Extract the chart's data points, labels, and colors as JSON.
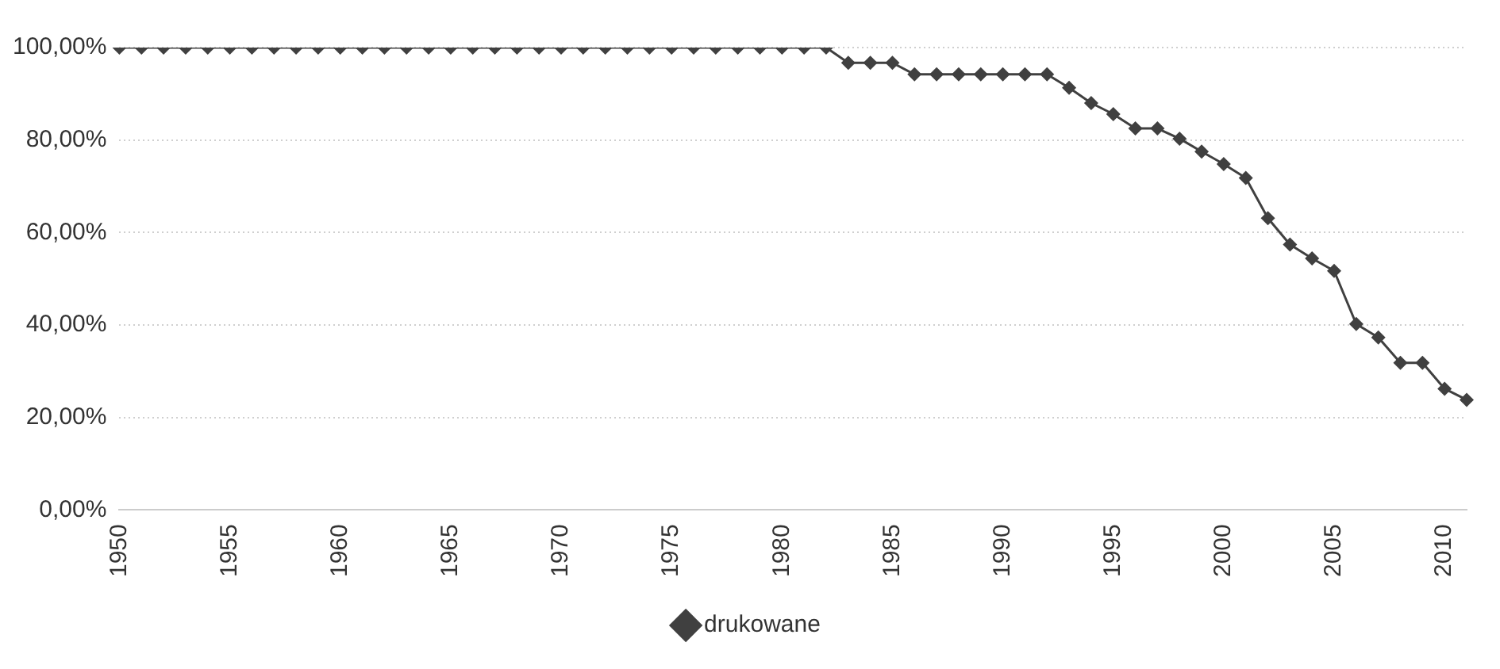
{
  "chart_data": {
    "type": "line",
    "categories": [
      "1950",
      null,
      null,
      null,
      null,
      "1955",
      null,
      null,
      null,
      null,
      "1960",
      null,
      null,
      null,
      null,
      "1965",
      null,
      null,
      null,
      null,
      "1970",
      null,
      null,
      null,
      null,
      "1975",
      null,
      null,
      null,
      null,
      "1980",
      null,
      null,
      null,
      null,
      "1985",
      null,
      null,
      null,
      null,
      "1990",
      null,
      null,
      null,
      null,
      "1995",
      null,
      null,
      null,
      null,
      "2000",
      null,
      null,
      null,
      null,
      "2005",
      null,
      null,
      null,
      null,
      "2010",
      null
    ],
    "series": [
      {
        "name": "drukowane",
        "color": "#404040",
        "values": [
          100,
          100,
          100,
          100,
          100,
          100,
          100,
          100,
          100,
          100,
          100,
          100,
          100,
          100,
          100,
          100,
          100,
          100,
          100,
          100,
          100,
          100,
          100,
          100,
          100,
          100,
          100,
          100,
          100,
          100,
          100,
          100,
          100,
          96.7,
          96.7,
          96.7,
          94.2,
          94.2,
          94.2,
          94.2,
          94.2,
          94.2,
          94.2,
          91.3,
          88,
          85.6,
          82.5,
          82.5,
          80.3,
          77.5,
          74.8,
          71.8,
          63.1,
          57.4,
          54.4,
          51.7,
          40.2,
          37.3,
          31.8,
          31.8,
          26.2,
          23.8
        ]
      }
    ],
    "ylim": [
      0,
      100
    ],
    "yticks": [
      {
        "value": 0,
        "label": "0,00%"
      },
      {
        "value": 20,
        "label": "20,00%"
      },
      {
        "value": 40,
        "label": "40,00%"
      },
      {
        "value": 60,
        "label": "60,00%"
      },
      {
        "value": 80,
        "label": "80,00%"
      },
      {
        "value": 100,
        "label": "100,00%"
      }
    ],
    "grid": "y",
    "legend": "bottom",
    "marker": "diamond",
    "line_style": "solid"
  }
}
